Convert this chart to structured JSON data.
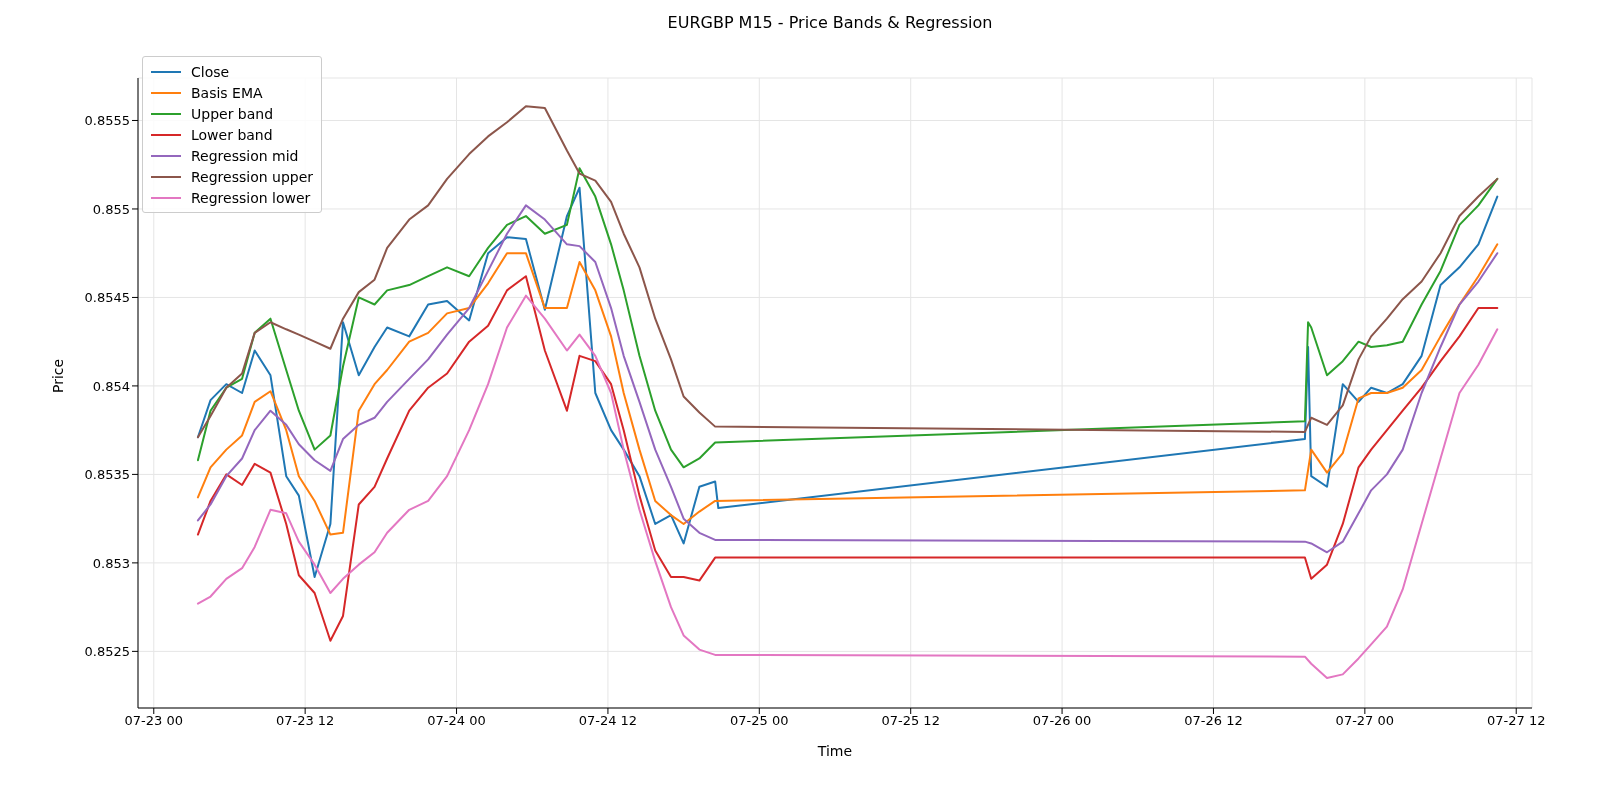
{
  "chart_data": {
    "type": "line",
    "title": "EURGBP M15 - Price Bands & Regression",
    "xlabel": "Time",
    "ylabel": "Price",
    "x": [
      "--07-23T03:30",
      "--07-23T04:30",
      "--07-23T05:45",
      "--07-23T07:00",
      "--07-23T08:00",
      "--07-23T09:15",
      "--07-23T10:30",
      "--07-23T11:30",
      "--07-23T12:45",
      "--07-23T14:00",
      "--07-23T15:00",
      "--07-23T16:15",
      "--07-23T17:30",
      "--07-23T18:30",
      "--07-23T20:15",
      "--07-23T21:45",
      "--07-23T23:15",
      "--07-24T01:00",
      "--07-24T02:30",
      "--07-24T04:00",
      "--07-24T05:30",
      "--07-24T07:00",
      "--07-24T08:45",
      "--07-24T09:45",
      "--07-24T11:00",
      "--07-24T12:15",
      "--07-24T13:15",
      "--07-24T14:30",
      "--07-24T15:45",
      "--07-24T17:00",
      "--07-24T18:00",
      "--07-24T19:15",
      "--07-24T20:30",
      "--07-26T19:15",
      "--07-26T19:45",
      "--07-26T21:00",
      "--07-26T22:15",
      "--07-26T23:30",
      "--07-27T00:30",
      "--07-27T01:45",
      "--07-27T03:00",
      "--07-27T04:30",
      "--07-27T06:00",
      "--07-27T07:30",
      "--07-27T09:00",
      "--07-27T10:30"
    ],
    "series": [
      {
        "name": "Close",
        "color": "#1f77b4",
        "x": [
          "--07-23T03:30",
          "--07-23T04:30",
          "--07-23T05:45",
          "--07-23T07:00",
          "--07-23T08:00",
          "--07-23T09:15",
          "--07-23T10:30",
          "--07-23T11:30",
          "--07-23T12:45",
          "--07-23T14:00",
          "--07-23T15:00",
          "--07-23T16:15",
          "--07-23T17:30",
          "--07-23T18:30",
          "--07-23T20:15",
          "--07-23T21:45",
          "--07-23T23:15",
          "--07-24T01:00",
          "--07-24T02:30",
          "--07-24T04:00",
          "--07-24T05:30",
          "--07-24T07:00",
          "--07-24T08:45",
          "--07-24T09:45",
          "--07-24T11:00",
          "--07-24T12:15",
          "--07-24T13:15",
          "--07-24T14:30",
          "--07-24T15:45",
          "--07-24T17:00",
          "--07-24T18:00",
          "--07-24T19:15",
          "--07-24T20:30",
          "--07-24T20:45",
          "--07-26T19:15",
          "--07-26T19:30",
          "--07-26T19:45",
          "--07-26T21:00",
          "--07-26T22:15",
          "--07-26T23:30",
          "--07-27T00:30",
          "--07-27T01:45",
          "--07-27T03:00",
          "--07-27T04:30",
          "--07-27T06:00",
          "--07-27T07:30",
          "--07-27T09:00",
          "--07-27T10:30"
        ],
        "values": [
          0.85371,
          0.85392,
          0.85401,
          0.85396,
          0.8542,
          0.85406,
          0.85349,
          0.85338,
          0.85292,
          0.85322,
          0.85436,
          0.85406,
          0.85422,
          0.85433,
          0.85428,
          0.85446,
          0.85448,
          0.85437,
          0.85475,
          0.85484,
          0.85483,
          0.85443,
          0.85496,
          0.85512,
          0.85396,
          0.85375,
          0.85364,
          0.85349,
          0.85322,
          0.85327,
          0.85311,
          0.85343,
          0.85346,
          0.85331,
          0.8537,
          0.85422,
          0.85349,
          0.85343,
          0.85401,
          0.85391,
          0.85399,
          0.85396,
          0.85401,
          0.85417,
          0.85457,
          0.85467,
          0.8548,
          0.85507
        ]
      },
      {
        "name": "Basis EMA",
        "color": "#ff7f0e",
        "values": [
          0.85337,
          0.85354,
          0.85364,
          0.85372,
          0.85391,
          0.85397,
          0.85375,
          0.85349,
          0.85335,
          0.85316,
          0.85317,
          0.85386,
          0.85401,
          0.85409,
          0.85425,
          0.8543,
          0.85441,
          0.85444,
          0.85458,
          0.85475,
          0.85475,
          0.85444,
          0.85444,
          0.8547,
          0.85454,
          0.85428,
          0.85396,
          0.85364,
          0.85335,
          0.85327,
          0.85322,
          0.85329,
          0.85335,
          0.85341,
          0.85364,
          0.85351,
          0.85362,
          0.85393,
          0.85396,
          0.85396,
          0.85399,
          0.85409,
          0.85428,
          0.85446,
          0.85462,
          0.8548
        ]
      },
      {
        "name": "Upper band",
        "color": "#2ca02c",
        "x": [
          "--07-23T03:30",
          "--07-23T04:30",
          "--07-23T05:45",
          "--07-23T07:00",
          "--07-23T08:00",
          "--07-23T09:15",
          "--07-23T10:30",
          "--07-23T11:30",
          "--07-23T12:45",
          "--07-23T14:00",
          "--07-23T15:00",
          "--07-23T16:15",
          "--07-23T17:30",
          "--07-23T18:30",
          "--07-23T20:15",
          "--07-23T21:45",
          "--07-23T23:15",
          "--07-24T01:00",
          "--07-24T02:30",
          "--07-24T04:00",
          "--07-24T05:30",
          "--07-24T07:00",
          "--07-24T08:45",
          "--07-24T09:45",
          "--07-24T11:00",
          "--07-24T12:15",
          "--07-24T13:15",
          "--07-24T14:30",
          "--07-24T15:45",
          "--07-24T17:00",
          "--07-24T18:00",
          "--07-24T19:15",
          "--07-24T20:30",
          "--07-26T19:15",
          "--07-26T19:30",
          "--07-26T19:45",
          "--07-26T21:00",
          "--07-26T22:15",
          "--07-26T23:30",
          "--07-27T00:30",
          "--07-27T01:45",
          "--07-27T03:00",
          "--07-27T04:30",
          "--07-27T06:00",
          "--07-27T07:30",
          "--07-27T09:00",
          "--07-27T10:30"
        ],
        "values": [
          0.85358,
          0.85386,
          0.85399,
          0.85404,
          0.8543,
          0.85438,
          0.85409,
          0.85386,
          0.85364,
          0.85372,
          0.85411,
          0.8545,
          0.85446,
          0.85454,
          0.85457,
          0.85462,
          0.85467,
          0.85462,
          0.85478,
          0.85491,
          0.85496,
          0.85486,
          0.85491,
          0.85523,
          0.85507,
          0.8548,
          0.85454,
          0.85417,
          0.85386,
          0.85364,
          0.85354,
          0.85359,
          0.85368,
          0.8538,
          0.85436,
          0.85433,
          0.85406,
          0.85414,
          0.85425,
          0.85422,
          0.85423,
          0.85425,
          0.85446,
          0.85465,
          0.85491,
          0.85502,
          0.85517
        ]
      },
      {
        "name": "Lower band",
        "color": "#d62728",
        "values": [
          0.85316,
          0.85335,
          0.8535,
          0.85344,
          0.85356,
          0.85351,
          0.85322,
          0.85293,
          0.85283,
          0.85256,
          0.8527,
          0.85333,
          0.85343,
          0.85359,
          0.85386,
          0.85399,
          0.85407,
          0.85425,
          0.85434,
          0.85454,
          0.85462,
          0.8542,
          0.85386,
          0.85417,
          0.85414,
          0.85401,
          0.85375,
          0.85338,
          0.85307,
          0.85292,
          0.85292,
          0.8529,
          0.85303,
          0.85303,
          0.85291,
          0.85299,
          0.85322,
          0.85354,
          0.85364,
          0.85375,
          0.85386,
          0.85399,
          0.85414,
          0.85428,
          0.85444,
          0.85444
        ]
      },
      {
        "name": "Regression mid",
        "color": "#9467bd",
        "values": [
          0.85324,
          0.85333,
          0.85349,
          0.85359,
          0.85375,
          0.85386,
          0.85378,
          0.85367,
          0.85358,
          0.85352,
          0.8537,
          0.85378,
          0.85382,
          0.85391,
          0.85404,
          0.85415,
          0.85429,
          0.85444,
          0.85465,
          0.85486,
          0.85502,
          0.85494,
          0.8548,
          0.85479,
          0.8547,
          0.85444,
          0.85417,
          0.85391,
          0.85364,
          0.85343,
          0.85325,
          0.85317,
          0.85313,
          0.85312,
          0.85311,
          0.85306,
          0.85312,
          0.85328,
          0.85341,
          0.8535,
          0.85364,
          0.85396,
          0.85422,
          0.85446,
          0.85459,
          0.85475
        ]
      },
      {
        "name": "Regression upper",
        "color": "#8c564b",
        "values": [
          0.85371,
          0.85383,
          0.85399,
          0.85407,
          0.8543,
          0.85436,
          0.85432,
          0.85429,
          0.85425,
          0.85421,
          0.85438,
          0.85453,
          0.8546,
          0.85478,
          0.85494,
          0.85502,
          0.85517,
          0.85531,
          0.85541,
          0.85549,
          0.85558,
          0.85557,
          0.85533,
          0.8552,
          0.85516,
          0.85504,
          0.85486,
          0.85467,
          0.85438,
          0.85415,
          0.85394,
          0.85385,
          0.85377,
          0.85374,
          0.85382,
          0.85378,
          0.85389,
          0.85415,
          0.85428,
          0.85438,
          0.85449,
          0.85459,
          0.85475,
          0.85496,
          0.85507,
          0.85517
        ]
      },
      {
        "name": "Regression lower",
        "color": "#e377c2",
        "values": [
          0.85277,
          0.85281,
          0.85291,
          0.85297,
          0.85309,
          0.8533,
          0.85328,
          0.85312,
          0.85299,
          0.85283,
          0.85291,
          0.85299,
          0.85306,
          0.85317,
          0.8533,
          0.85335,
          0.85349,
          0.85375,
          0.85401,
          0.85433,
          0.85451,
          0.85438,
          0.8542,
          0.85429,
          0.85417,
          0.85396,
          0.85364,
          0.8533,
          0.85301,
          0.85275,
          0.85259,
          0.85251,
          0.85248,
          0.85247,
          0.85243,
          0.85235,
          0.85237,
          0.85246,
          0.85254,
          0.85264,
          0.85285,
          0.85322,
          0.85359,
          0.85396,
          0.85412,
          0.85432
        ]
      }
    ],
    "xlim": [
      "--07-22T22:45",
      "--07-27T13:15"
    ],
    "xticks": [
      {
        "value": "--07-23T00:00",
        "label": "07-23 00"
      },
      {
        "value": "--07-23T12:00",
        "label": "07-23 12"
      },
      {
        "value": "--07-24T00:00",
        "label": "07-24 00"
      },
      {
        "value": "--07-24T12:00",
        "label": "07-24 12"
      },
      {
        "value": "--07-25T00:00",
        "label": "07-25 00"
      },
      {
        "value": "--07-25T12:00",
        "label": "07-25 12"
      },
      {
        "value": "--07-26T00:00",
        "label": "07-26 00"
      },
      {
        "value": "--07-26T12:00",
        "label": "07-26 12"
      },
      {
        "value": "--07-27T00:00",
        "label": "07-27 00"
      },
      {
        "value": "--07-27T12:00",
        "label": "07-27 12"
      }
    ],
    "ylim": [
      0.85218,
      0.85574
    ],
    "yticks": [
      0.8525,
      0.853,
      0.8535,
      0.854,
      0.8545,
      0.855,
      0.8555
    ],
    "grid": true,
    "legend": "top left",
    "marker": "none",
    "line_style": "solid"
  }
}
